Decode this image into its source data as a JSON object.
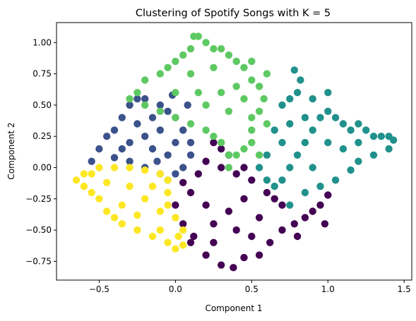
{
  "chart_data": {
    "type": "scatter",
    "title": "Clustering of Spotify Songs with K = 5",
    "xlabel": "Component 1",
    "ylabel": "Component 2",
    "xlim": [
      -0.78,
      1.55
    ],
    "ylim": [
      -0.9,
      1.16
    ],
    "xticks": [
      -0.5,
      0.0,
      0.5,
      1.0,
      1.5
    ],
    "xtick_labels": [
      "−0.5",
      "0.0",
      "0.5",
      "1.0",
      "1.5"
    ],
    "yticks": [
      -0.75,
      -0.5,
      -0.25,
      0.0,
      0.25,
      0.5,
      0.75,
      1.0
    ],
    "ytick_labels": [
      "−0.75",
      "−0.50",
      "−0.25",
      "0.00",
      "0.25",
      "0.50",
      "0.75",
      "1.00"
    ],
    "grid": false,
    "legend": "none",
    "colors": {
      "cluster_0": "#440154",
      "cluster_1": "#3b528b",
      "cluster_2": "#21918c",
      "cluster_3": "#5ec962",
      "cluster_4": "#fde725"
    },
    "series": [
      {
        "cluster": 0,
        "color": "#440154",
        "points": [
          [
            0.05,
            -0.12
          ],
          [
            0.1,
            -0.2
          ],
          [
            0.0,
            -0.3
          ],
          [
            0.05,
            -0.45
          ],
          [
            0.1,
            -0.6
          ],
          [
            0.2,
            -0.7
          ],
          [
            0.3,
            -0.78
          ],
          [
            0.38,
            -0.8
          ],
          [
            0.45,
            -0.72
          ],
          [
            0.55,
            -0.7
          ],
          [
            0.62,
            -0.6
          ],
          [
            0.7,
            -0.5
          ],
          [
            0.78,
            -0.45
          ],
          [
            0.85,
            -0.4
          ],
          [
            0.9,
            -0.35
          ],
          [
            0.95,
            -0.3
          ],
          [
            0.6,
            -0.2
          ],
          [
            0.5,
            -0.1
          ],
          [
            0.4,
            -0.05
          ],
          [
            0.3,
            0.0
          ],
          [
            0.2,
            0.05
          ],
          [
            0.3,
            0.15
          ],
          [
            0.25,
            0.2
          ],
          [
            0.35,
            0.1
          ],
          [
            0.45,
            0.0
          ],
          [
            0.15,
            -0.05
          ],
          [
            0.35,
            -0.35
          ],
          [
            0.4,
            -0.5
          ],
          [
            0.25,
            -0.45
          ],
          [
            0.55,
            -0.4
          ],
          [
            0.45,
            -0.25
          ],
          [
            0.2,
            -0.3
          ],
          [
            0.7,
            -0.3
          ],
          [
            0.8,
            -0.55
          ],
          [
            0.98,
            -0.45
          ],
          [
            1.0,
            -0.22
          ],
          [
            0.12,
            -0.55
          ],
          [
            0.25,
            -0.6
          ],
          [
            0.5,
            -0.55
          ],
          [
            0.65,
            -0.25
          ]
        ]
      },
      {
        "cluster": 1,
        "color": "#3b528b",
        "points": [
          [
            -0.55,
            0.05
          ],
          [
            -0.5,
            0.15
          ],
          [
            -0.45,
            0.25
          ],
          [
            -0.4,
            0.3
          ],
          [
            -0.35,
            0.4
          ],
          [
            -0.3,
            0.5
          ],
          [
            -0.25,
            0.55
          ],
          [
            -0.2,
            0.55
          ],
          [
            -0.1,
            0.5
          ],
          [
            -0.05,
            0.45
          ],
          [
            0.0,
            0.4
          ],
          [
            0.05,
            0.3
          ],
          [
            0.1,
            0.2
          ],
          [
            0.1,
            0.1
          ],
          [
            0.05,
            0.0
          ],
          [
            0.0,
            -0.05
          ],
          [
            -0.05,
            -0.1
          ],
          [
            -0.1,
            -0.05
          ],
          [
            -0.2,
            0.0
          ],
          [
            -0.3,
            0.05
          ],
          [
            -0.4,
            0.08
          ],
          [
            -0.3,
            0.2
          ],
          [
            -0.2,
            0.25
          ],
          [
            -0.1,
            0.3
          ],
          [
            -0.15,
            0.15
          ],
          [
            0.0,
            0.2
          ],
          [
            -0.05,
            0.1
          ],
          [
            -0.25,
            0.35
          ],
          [
            -0.35,
            0.15
          ],
          [
            -0.15,
            0.4
          ],
          [
            0.08,
            0.5
          ],
          [
            -0.02,
            0.58
          ],
          [
            -0.12,
            0.05
          ]
        ]
      },
      {
        "cluster": 2,
        "color": "#21918c",
        "points": [
          [
            0.6,
            0.1
          ],
          [
            0.55,
            0.0
          ],
          [
            0.6,
            -0.1
          ],
          [
            0.65,
            -0.15
          ],
          [
            0.7,
            -0.1
          ],
          [
            0.75,
            0.0
          ],
          [
            0.8,
            0.1
          ],
          [
            0.85,
            0.2
          ],
          [
            0.9,
            0.3
          ],
          [
            0.95,
            0.4
          ],
          [
            1.0,
            0.45
          ],
          [
            1.05,
            0.4
          ],
          [
            1.1,
            0.35
          ],
          [
            1.15,
            0.3
          ],
          [
            1.2,
            0.35
          ],
          [
            1.25,
            0.3
          ],
          [
            1.3,
            0.25
          ],
          [
            1.35,
            0.25
          ],
          [
            1.4,
            0.25
          ],
          [
            1.43,
            0.22
          ],
          [
            1.4,
            0.15
          ],
          [
            1.3,
            0.1
          ],
          [
            1.2,
            0.05
          ],
          [
            1.15,
            -0.02
          ],
          [
            1.05,
            -0.1
          ],
          [
            0.95,
            -0.15
          ],
          [
            0.85,
            -0.2
          ],
          [
            0.75,
            -0.3
          ],
          [
            0.7,
            0.2
          ],
          [
            0.75,
            0.35
          ],
          [
            0.7,
            0.5
          ],
          [
            0.75,
            0.55
          ],
          [
            0.8,
            0.6
          ],
          [
            0.82,
            0.7
          ],
          [
            0.78,
            0.78
          ],
          [
            0.9,
            0.55
          ],
          [
            1.0,
            0.2
          ],
          [
            1.1,
            0.15
          ],
          [
            0.9,
            0.0
          ],
          [
            0.85,
            0.4
          ],
          [
            1.2,
            0.2
          ],
          [
            0.65,
            0.3
          ],
          [
            1.0,
            0.6
          ]
        ]
      },
      {
        "cluster": 3,
        "color": "#5ec962",
        "points": [
          [
            -0.3,
            0.55
          ],
          [
            -0.25,
            0.6
          ],
          [
            -0.2,
            0.7
          ],
          [
            -0.1,
            0.75
          ],
          [
            -0.05,
            0.8
          ],
          [
            0.0,
            0.85
          ],
          [
            0.05,
            0.9
          ],
          [
            0.1,
            0.95
          ],
          [
            0.12,
            1.05
          ],
          [
            0.15,
            1.05
          ],
          [
            0.2,
            1.0
          ],
          [
            0.25,
            0.95
          ],
          [
            0.3,
            0.95
          ],
          [
            0.35,
            0.9
          ],
          [
            0.4,
            0.85
          ],
          [
            0.45,
            0.8
          ],
          [
            0.5,
            0.85
          ],
          [
            0.5,
            0.7
          ],
          [
            0.55,
            0.65
          ],
          [
            0.58,
            0.55
          ],
          [
            0.55,
            0.45
          ],
          [
            0.5,
            0.4
          ],
          [
            0.5,
            0.3
          ],
          [
            0.5,
            0.2
          ],
          [
            0.45,
            0.15
          ],
          [
            0.4,
            0.1
          ],
          [
            0.35,
            0.1
          ],
          [
            0.3,
            0.2
          ],
          [
            0.25,
            0.25
          ],
          [
            0.2,
            0.3
          ],
          [
            0.1,
            0.35
          ],
          [
            0.0,
            0.4
          ],
          [
            -0.1,
            0.45
          ],
          [
            -0.2,
            0.5
          ],
          [
            0.15,
            0.6
          ],
          [
            0.2,
            0.5
          ],
          [
            0.3,
            0.6
          ],
          [
            0.1,
            0.75
          ],
          [
            0.35,
            0.45
          ],
          [
            0.4,
            0.65
          ],
          [
            0.6,
            0.75
          ],
          [
            0.6,
            0.35
          ],
          [
            0.0,
            0.6
          ],
          [
            0.25,
            0.8
          ],
          [
            0.45,
            0.55
          ],
          [
            0.55,
            0.1
          ],
          [
            0.35,
            0.0
          ]
        ]
      },
      {
        "cluster": 4,
        "color": "#fde725",
        "points": [
          [
            -0.65,
            -0.1
          ],
          [
            -0.6,
            -0.15
          ],
          [
            -0.55,
            -0.2
          ],
          [
            -0.5,
            -0.25
          ],
          [
            -0.45,
            -0.35
          ],
          [
            -0.4,
            -0.4
          ],
          [
            -0.35,
            -0.45
          ],
          [
            -0.25,
            -0.5
          ],
          [
            -0.15,
            -0.55
          ],
          [
            -0.05,
            -0.6
          ],
          [
            0.0,
            -0.65
          ],
          [
            0.05,
            -0.62
          ],
          [
            0.05,
            -0.5
          ],
          [
            0.0,
            -0.4
          ],
          [
            -0.05,
            -0.3
          ],
          [
            -0.05,
            -0.2
          ],
          [
            -0.05,
            -0.1
          ],
          [
            -0.1,
            -0.05
          ],
          [
            -0.2,
            -0.02
          ],
          [
            -0.3,
            0.0
          ],
          [
            -0.4,
            0.0
          ],
          [
            -0.5,
            0.0
          ],
          [
            -0.6,
            -0.05
          ],
          [
            -0.3,
            -0.15
          ],
          [
            -0.2,
            -0.25
          ],
          [
            -0.1,
            -0.35
          ],
          [
            -0.35,
            -0.3
          ],
          [
            -0.15,
            -0.15
          ],
          [
            -0.45,
            -0.12
          ],
          [
            -0.25,
            -0.38
          ],
          [
            -0.1,
            -0.5
          ],
          [
            -0.55,
            -0.05
          ],
          [
            0.02,
            -0.55
          ]
        ]
      }
    ]
  }
}
